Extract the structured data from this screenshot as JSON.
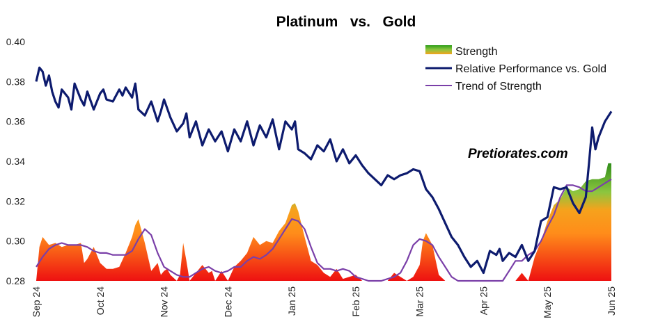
{
  "chart_data": {
    "type": "line",
    "title": "Platinum   vs.   Gold",
    "watermark": "Pretiorates.com",
    "ylim": [
      0.28,
      0.4
    ],
    "y_ticks": [
      "0.40",
      "0.38",
      "0.36",
      "0.34",
      "0.32",
      "0.30",
      "0.28"
    ],
    "x_ticks": [
      "Sep 24",
      "Oct 24",
      "Nov 24",
      "Dec 24",
      "Jan 25",
      "Feb 25",
      "Mar 25",
      "Apr 25",
      "May 25",
      "Jun 25"
    ],
    "xlim": [
      0,
      9
    ],
    "grid": false,
    "legend_position": "top-right",
    "legend": [
      "Strength",
      "Relative Performance vs. Gold",
      "Trend of Strength"
    ],
    "colors": {
      "relative": "#0d1b6e",
      "trend": "#7a3fa8",
      "strength_low": "#ee1111",
      "strength_mid": "#ff8c1a",
      "strength_high": "#2f9e1a"
    },
    "series": [
      {
        "name": "Relative Performance vs. Gold",
        "x": [
          0,
          0.05,
          0.1,
          0.15,
          0.2,
          0.25,
          0.3,
          0.35,
          0.4,
          0.5,
          0.55,
          0.6,
          0.7,
          0.75,
          0.8,
          0.9,
          1,
          1.05,
          1.1,
          1.2,
          1.3,
          1.35,
          1.4,
          1.5,
          1.55,
          1.6,
          1.7,
          1.8,
          1.9,
          1.95,
          2,
          2.1,
          2.2,
          2.3,
          2.35,
          2.4,
          2.5,
          2.6,
          2.7,
          2.8,
          2.9,
          3,
          3.1,
          3.2,
          3.3,
          3.4,
          3.5,
          3.6,
          3.7,
          3.8,
          3.9,
          4,
          4.05,
          4.1,
          4.2,
          4.3,
          4.4,
          4.5,
          4.6,
          4.7,
          4.8,
          4.9,
          5,
          5.1,
          5.2,
          5.3,
          5.4,
          5.5,
          5.6,
          5.7,
          5.8,
          5.9,
          6,
          6.1,
          6.2,
          6.3,
          6.4,
          6.5,
          6.6,
          6.7,
          6.8,
          6.9,
          7,
          7.1,
          7.2,
          7.25,
          7.3,
          7.4,
          7.5,
          7.6,
          7.7,
          7.8,
          7.9,
          8,
          8.1,
          8.2,
          8.3,
          8.4,
          8.5,
          8.6,
          8.65,
          8.7,
          8.75,
          8.8,
          8.9,
          9
        ],
        "values": [
          0.38,
          0.387,
          0.385,
          0.378,
          0.383,
          0.375,
          0.37,
          0.367,
          0.376,
          0.372,
          0.366,
          0.379,
          0.371,
          0.368,
          0.375,
          0.366,
          0.374,
          0.376,
          0.371,
          0.37,
          0.376,
          0.373,
          0.377,
          0.372,
          0.379,
          0.366,
          0.363,
          0.37,
          0.36,
          0.365,
          0.371,
          0.362,
          0.355,
          0.359,
          0.364,
          0.352,
          0.36,
          0.348,
          0.356,
          0.35,
          0.355,
          0.345,
          0.356,
          0.35,
          0.36,
          0.348,
          0.358,
          0.352,
          0.361,
          0.346,
          0.36,
          0.356,
          0.36,
          0.346,
          0.344,
          0.341,
          0.348,
          0.345,
          0.351,
          0.34,
          0.346,
          0.339,
          0.343,
          0.338,
          0.334,
          0.331,
          0.328,
          0.333,
          0.331,
          0.333,
          0.334,
          0.336,
          0.335,
          0.326,
          0.322,
          0.316,
          0.309,
          0.302,
          0.298,
          0.292,
          0.287,
          0.29,
          0.284,
          0.295,
          0.293,
          0.296,
          0.29,
          0.294,
          0.292,
          0.298,
          0.29,
          0.295,
          0.31,
          0.312,
          0.327,
          0.326,
          0.327,
          0.319,
          0.314,
          0.322,
          0.339,
          0.357,
          0.346,
          0.352,
          0.36,
          0.365
        ]
      },
      {
        "name": "Trend of Strength",
        "x": [
          0,
          0.1,
          0.2,
          0.3,
          0.4,
          0.5,
          0.6,
          0.7,
          0.8,
          0.9,
          1,
          1.1,
          1.2,
          1.3,
          1.4,
          1.5,
          1.6,
          1.7,
          1.8,
          1.9,
          2,
          2.1,
          2.2,
          2.3,
          2.4,
          2.5,
          2.6,
          2.7,
          2.8,
          2.9,
          3,
          3.1,
          3.2,
          3.3,
          3.4,
          3.5,
          3.6,
          3.7,
          3.8,
          3.9,
          4,
          4.1,
          4.2,
          4.3,
          4.4,
          4.5,
          4.6,
          4.7,
          4.8,
          4.9,
          5,
          5.1,
          5.2,
          5.3,
          5.4,
          5.5,
          5.6,
          5.7,
          5.8,
          5.9,
          6,
          6.1,
          6.2,
          6.3,
          6.4,
          6.5,
          6.6,
          6.7,
          6.8,
          6.9,
          7,
          7.1,
          7.2,
          7.3,
          7.4,
          7.5,
          7.6,
          7.7,
          7.8,
          7.9,
          8,
          8.1,
          8.2,
          8.3,
          8.4,
          8.5,
          8.6,
          8.7,
          8.8,
          8.9,
          9
        ],
        "values": [
          0.287,
          0.292,
          0.296,
          0.298,
          0.299,
          0.298,
          0.298,
          0.298,
          0.297,
          0.295,
          0.294,
          0.294,
          0.293,
          0.293,
          0.293,
          0.295,
          0.301,
          0.306,
          0.303,
          0.294,
          0.287,
          0.285,
          0.283,
          0.282,
          0.282,
          0.284,
          0.286,
          0.287,
          0.285,
          0.284,
          0.285,
          0.287,
          0.287,
          0.29,
          0.292,
          0.291,
          0.293,
          0.296,
          0.301,
          0.306,
          0.311,
          0.31,
          0.306,
          0.297,
          0.289,
          0.286,
          0.286,
          0.285,
          0.286,
          0.285,
          0.282,
          0.281,
          0.28,
          0.28,
          0.28,
          0.281,
          0.282,
          0.284,
          0.29,
          0.298,
          0.301,
          0.3,
          0.298,
          0.292,
          0.287,
          0.282,
          0.28,
          0.28,
          0.28,
          0.28,
          0.28,
          0.28,
          0.28,
          0.28,
          0.285,
          0.29,
          0.29,
          0.293,
          0.295,
          0.3,
          0.307,
          0.313,
          0.322,
          0.328,
          0.328,
          0.327,
          0.325,
          0.325,
          0.327,
          0.329,
          0.331
        ]
      },
      {
        "name": "Strength",
        "x": [
          0,
          0.05,
          0.1,
          0.2,
          0.3,
          0.4,
          0.5,
          0.6,
          0.7,
          0.75,
          0.8,
          0.9,
          1,
          1.1,
          1.2,
          1.3,
          1.4,
          1.5,
          1.55,
          1.6,
          1.65,
          1.7,
          1.8,
          1.9,
          1.95,
          2,
          2.05,
          2.1,
          2.2,
          2.25,
          2.3,
          2.35,
          2.4,
          2.5,
          2.6,
          2.7,
          2.75,
          2.8,
          2.9,
          3,
          3.1,
          3.2,
          3.3,
          3.4,
          3.5,
          3.6,
          3.7,
          3.8,
          3.9,
          4,
          4.05,
          4.1,
          4.2,
          4.3,
          4.4,
          4.5,
          4.6,
          4.7,
          4.8,
          4.9,
          5,
          5.1,
          5.2,
          5.3,
          5.4,
          5.5,
          5.6,
          5.7,
          5.8,
          5.9,
          6,
          6.05,
          6.1,
          6.2,
          6.3,
          6.4,
          6.5,
          6.6,
          6.7,
          6.8,
          6.9,
          7,
          7.1,
          7.2,
          7.3,
          7.4,
          7.5,
          7.6,
          7.7,
          7.8,
          7.9,
          8,
          8.1,
          8.2,
          8.3,
          8.4,
          8.5,
          8.6,
          8.7,
          8.8,
          8.9,
          8.95,
          9
        ],
        "values": [
          0.28,
          0.297,
          0.302,
          0.298,
          0.299,
          0.297,
          0.298,
          0.298,
          0.299,
          0.289,
          0.291,
          0.297,
          0.289,
          0.286,
          0.286,
          0.287,
          0.294,
          0.302,
          0.308,
          0.311,
          0.305,
          0.299,
          0.285,
          0.289,
          0.283,
          0.285,
          0.286,
          0.283,
          0.28,
          0.283,
          0.299,
          0.29,
          0.28,
          0.284,
          0.288,
          0.284,
          0.285,
          0.28,
          0.285,
          0.28,
          0.287,
          0.29,
          0.294,
          0.302,
          0.298,
          0.3,
          0.299,
          0.305,
          0.309,
          0.318,
          0.319,
          0.315,
          0.302,
          0.29,
          0.288,
          0.284,
          0.282,
          0.286,
          0.281,
          0.282,
          0.283,
          0.28,
          0.28,
          0.28,
          0.28,
          0.28,
          0.284,
          0.282,
          0.28,
          0.282,
          0.288,
          0.3,
          0.304,
          0.298,
          0.283,
          0.28,
          0.28,
          0.28,
          0.28,
          0.28,
          0.28,
          0.28,
          0.28,
          0.28,
          0.28,
          0.28,
          0.28,
          0.284,
          0.28,
          0.292,
          0.3,
          0.31,
          0.318,
          0.321,
          0.327,
          0.325,
          0.326,
          0.33,
          0.331,
          0.331,
          0.332,
          0.339,
          0.339
        ]
      }
    ]
  }
}
